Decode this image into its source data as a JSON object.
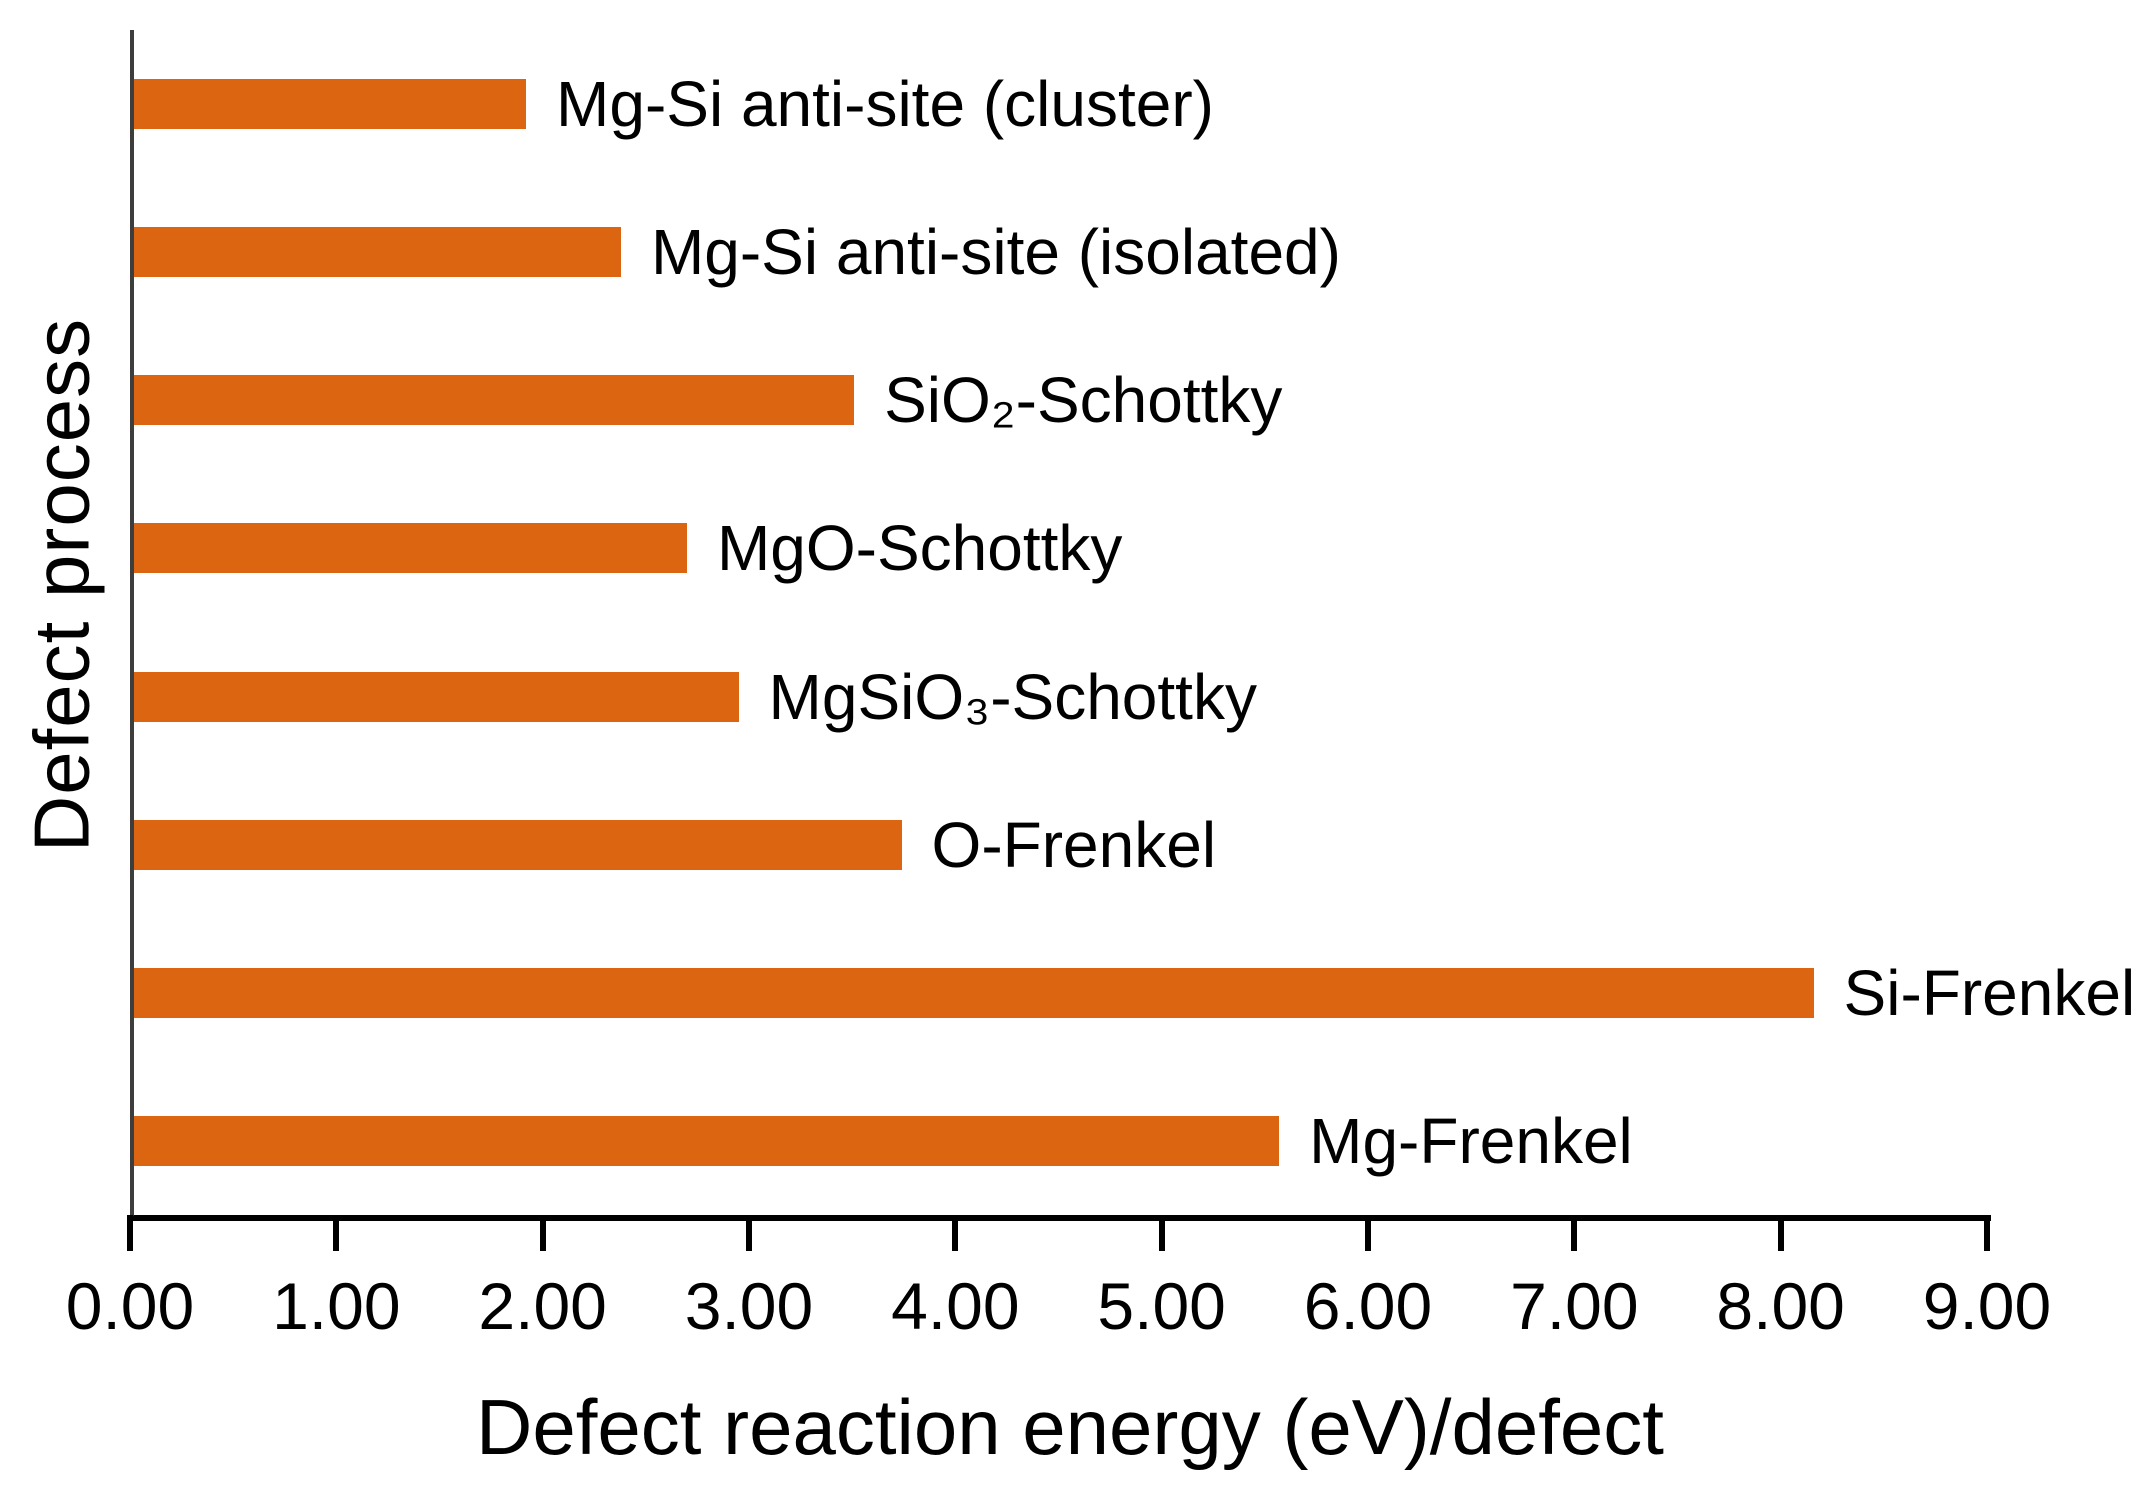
{
  "chart_data": {
    "type": "bar",
    "orientation": "horizontal",
    "title": "",
    "xlabel": "Defect reaction energy (eV)/defect",
    "ylabel": "Defect process",
    "xlim": [
      0,
      9
    ],
    "x_tick_labels": [
      "0.00",
      "1.00",
      "2.00",
      "3.00",
      "4.00",
      "5.00",
      "6.00",
      "7.00",
      "8.00",
      "9.00"
    ],
    "x_tick_values": [
      0,
      1,
      2,
      3,
      4,
      5,
      6,
      7,
      8,
      9
    ],
    "grid": false,
    "legend": false,
    "bar_color": "#DC6512",
    "categories": [
      "Mg-Si anti-site (cluster)",
      "Mg-Si anti-site (isolated)",
      "SiO₂-Schottky",
      "MgO-Schottky",
      "MgSiO₃-Schottky",
      "O-Frenkel",
      "Si-Frenkel",
      "Mg-Frenkel"
    ],
    "values": [
      1.9,
      2.36,
      3.49,
      2.68,
      2.93,
      3.72,
      8.14,
      5.55
    ],
    "category_label_position": "right of bar end"
  }
}
